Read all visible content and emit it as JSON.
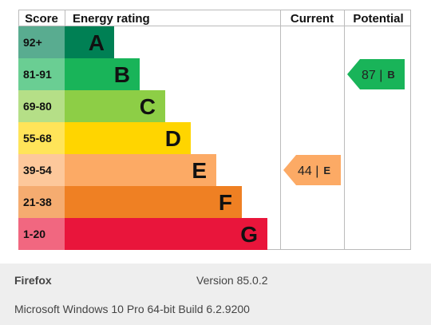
{
  "chart_data": {
    "type": "bar",
    "columns": {
      "score": "Score",
      "rating": "Energy rating",
      "current": "Current",
      "potential": "Potential"
    },
    "bands": [
      {
        "score": "92+",
        "letter": "A",
        "color": "#008054"
      },
      {
        "score": "81-91",
        "letter": "B",
        "color": "#19b459"
      },
      {
        "score": "69-80",
        "letter": "C",
        "color": "#8dce46"
      },
      {
        "score": "55-68",
        "letter": "D",
        "color": "#ffd500"
      },
      {
        "score": "39-54",
        "letter": "E",
        "color": "#fcaa65"
      },
      {
        "score": "21-38",
        "letter": "F",
        "color": "#ef8023"
      },
      {
        "score": "1-20",
        "letter": "G",
        "color": "#e9153b"
      }
    ],
    "current": {
      "value": 44,
      "letter": "E",
      "label": "44 |"
    },
    "potential": {
      "value": 87,
      "letter": "B",
      "label": "87 |"
    }
  },
  "footer": {
    "browser": "Firefox",
    "version": "Version 85.0.2",
    "os": "Microsoft Windows 10 Pro 64-bit Build 6.2.9200"
  }
}
